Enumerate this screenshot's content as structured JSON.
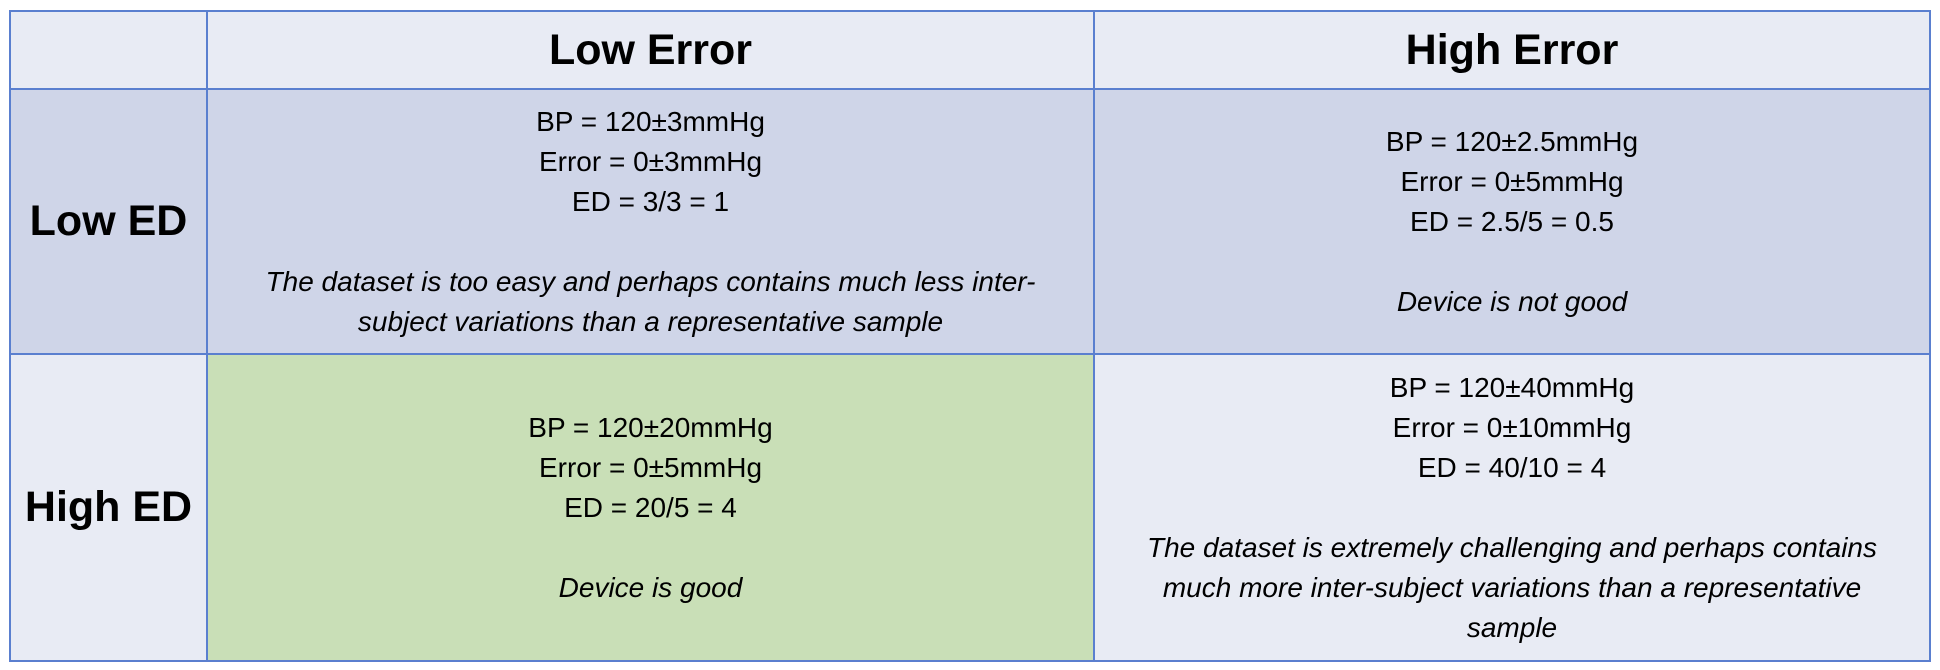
{
  "columns": {
    "low_error": "Low Error",
    "high_error": "High Error"
  },
  "rows": {
    "low_ed": "Low ED",
    "high_ed": "High ED"
  },
  "cells": {
    "low_ed_low_error": {
      "bp": "BP = 120±3mmHg",
      "error": "Error = 0±3mmHg",
      "ed": "ED = 3/3 = 1",
      "note": "The dataset is too easy and perhaps contains much less inter-subject variations than a representative sample"
    },
    "low_ed_high_error": {
      "bp": "BP = 120±2.5mmHg",
      "error": "Error = 0±5mmHg",
      "ed": "ED = 2.5/5 = 0.5",
      "note": "Device is not good"
    },
    "high_ed_low_error": {
      "bp": "BP = 120±20mmHg",
      "error": "Error = 0±5mmHg",
      "ed": "ED = 20/5 = 4",
      "note": "Device is good"
    },
    "high_ed_high_error": {
      "bp": "BP = 120±40mmHg",
      "error": "Error = 0±10mmHg",
      "ed": "ED = 40/10 = 4",
      "note": "The dataset is extremely challenging and perhaps contains much more inter-subject variations than a representative sample"
    }
  },
  "colors": {
    "border": "#5a7fcf",
    "light_cell": "#e8ebf4",
    "mid_cell": "#cfd5e8",
    "highlight_cell": "#c9dfb7"
  }
}
